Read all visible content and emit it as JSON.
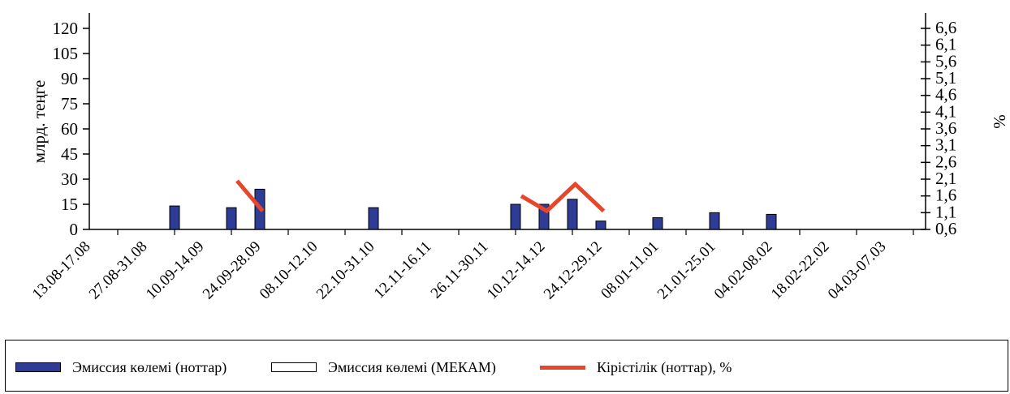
{
  "chart_data": {
    "type": "bar",
    "categories": [
      "13.08-17.08",
      "27.08-31.08",
      "10.09-14.09",
      "24.09-28.09",
      "08.10-12.10",
      "22.10-31.10",
      "12.11-16.11",
      "26.11-30.11",
      "10.12-14.12",
      "24.12-29.12",
      "08.01-11.01",
      "21.01-25.01",
      "04.02-08.02",
      "18.02-22.02",
      "04.03-07.03"
    ],
    "ylabel": "млрд. теңге",
    "y2label": "%",
    "ylim": [
      0,
      120
    ],
    "y2lim": [
      0.6,
      6.6
    ],
    "yticks": [
      "0",
      "15",
      "30",
      "45",
      "60",
      "75",
      "90",
      "105",
      "120"
    ],
    "y2ticks": [
      "0,6",
      "1,1",
      "1,6",
      "2,1",
      "2,6",
      "3,1",
      "3,6",
      "4,1",
      "4,6",
      "5,1",
      "5,6",
      "6,1",
      "6,6"
    ],
    "bars": [
      {
        "x": 1.5,
        "value": 14
      },
      {
        "x": 2.5,
        "value": 13
      },
      {
        "x": 3.0,
        "value": 24
      },
      {
        "x": 5.0,
        "value": 13
      },
      {
        "x": 7.5,
        "value": 15
      },
      {
        "x": 8.0,
        "value": 15
      },
      {
        "x": 8.5,
        "value": 18
      },
      {
        "x": 9.0,
        "value": 5
      },
      {
        "x": 10.0,
        "value": 7
      },
      {
        "x": 11.0,
        "value": 10
      },
      {
        "x": 12.0,
        "value": 9
      }
    ],
    "lines": [
      {
        "points": [
          {
            "x": 2.6,
            "y": 2.05
          },
          {
            "x": 3.05,
            "y": 1.15
          }
        ]
      },
      {
        "points": [
          {
            "x": 7.6,
            "y": 1.6
          },
          {
            "x": 8.05,
            "y": 1.15
          },
          {
            "x": 8.55,
            "y": 1.95
          },
          {
            "x": 9.05,
            "y": 1.15
          }
        ]
      }
    ],
    "legend": [
      {
        "label": "Эмиссия көлемі (ноттар)",
        "kind": "bar",
        "color": "#2f3c96"
      },
      {
        "label": "Эмиссия көлемі (МЕКАМ)",
        "kind": "empty",
        "color": "#ffffff"
      },
      {
        "label": "Кірістілік (ноттар), %",
        "kind": "line",
        "color": "#e8462b"
      }
    ],
    "legend_position": "bottom",
    "grid": false
  }
}
